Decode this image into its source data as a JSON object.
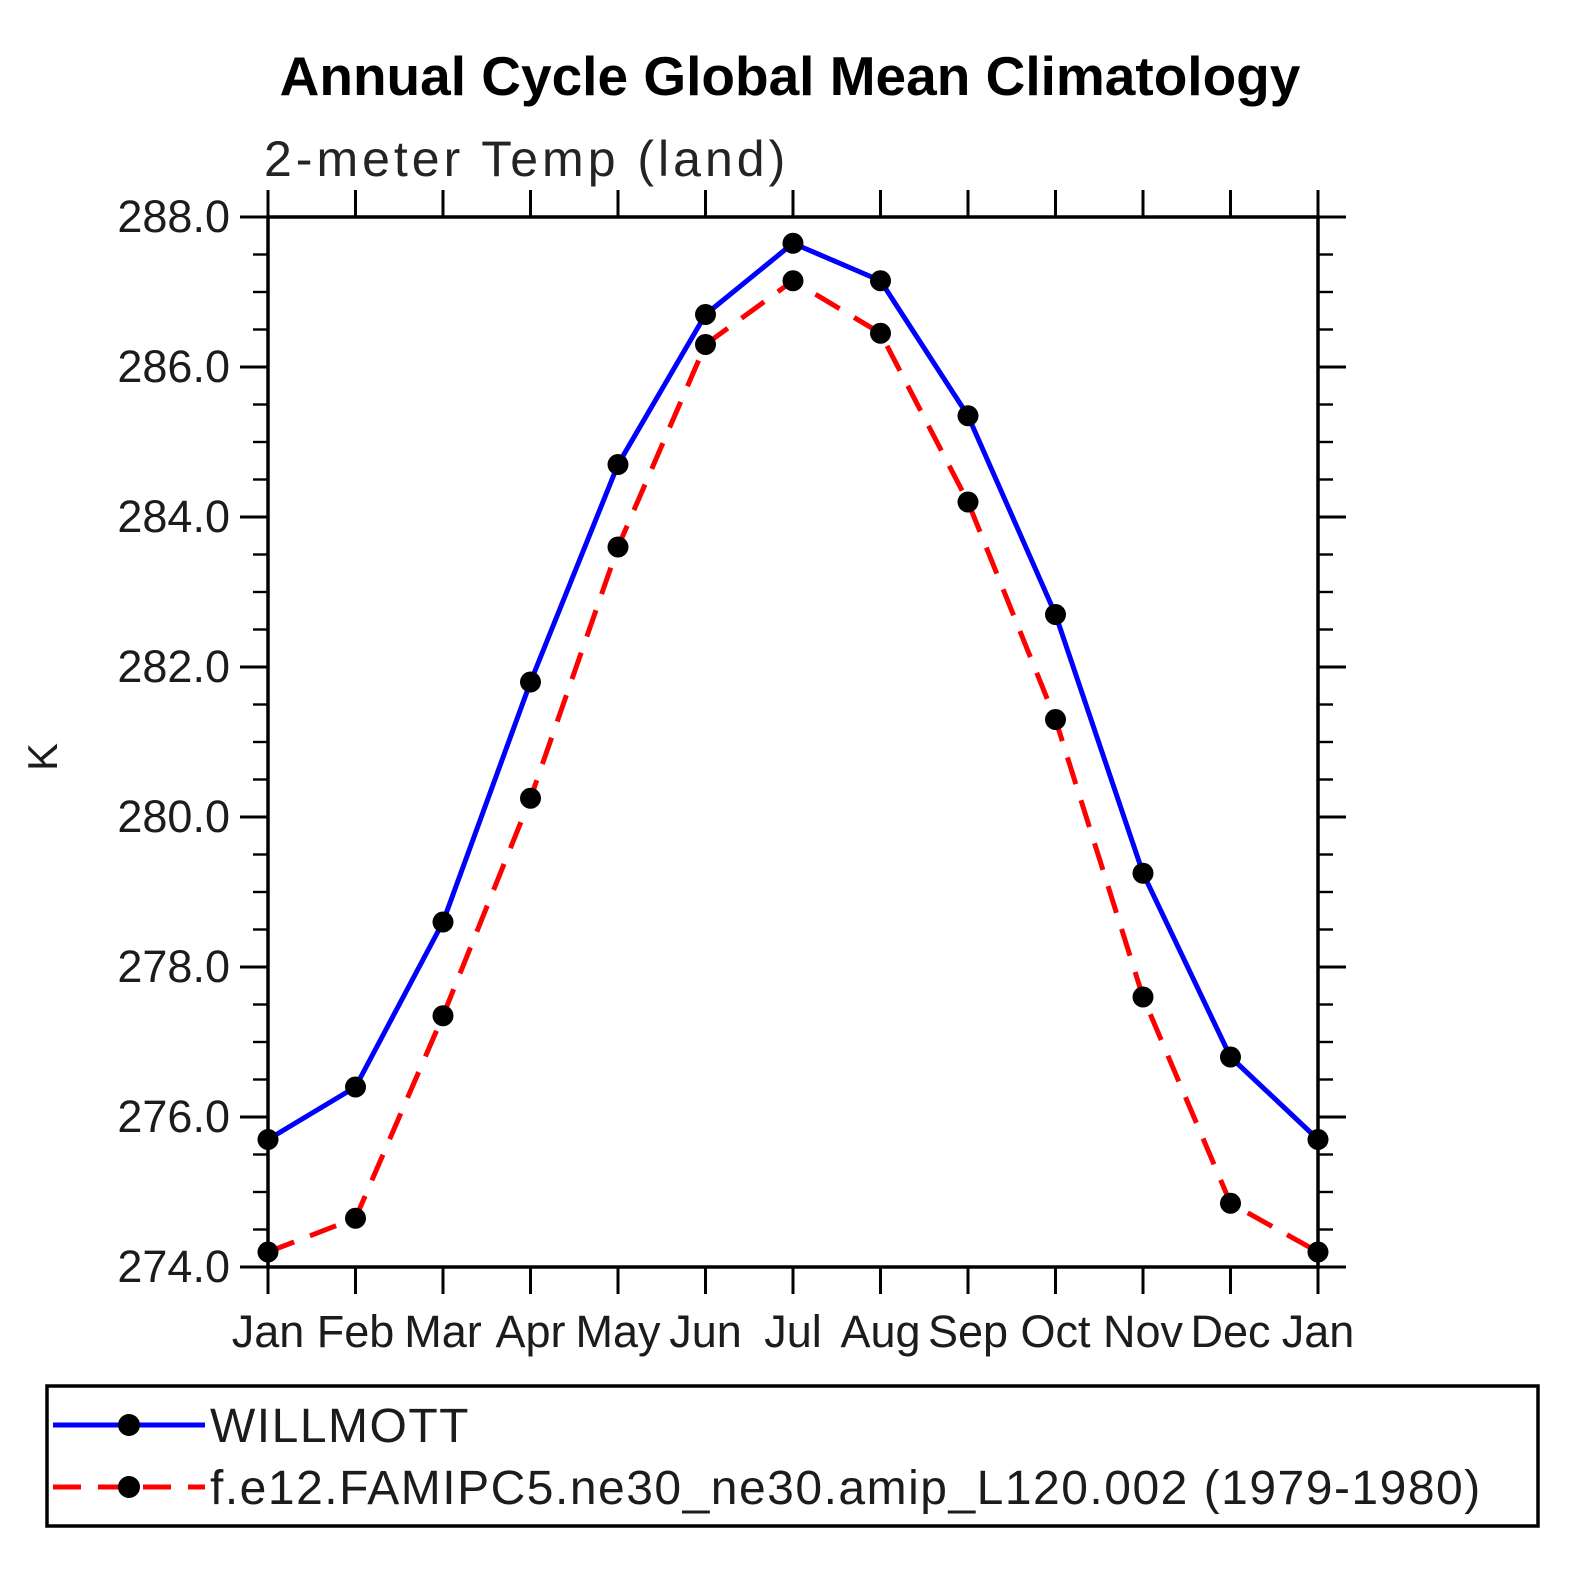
{
  "page": {
    "title": "Annual Cycle Global Mean Climatology",
    "subtitle": "2-meter Temp (land)"
  },
  "chart_data": {
    "type": "line",
    "title": "Annual Cycle Global Mean Climatology",
    "subtitle": "2-meter Temp (land)",
    "xlabel": "",
    "ylabel": "K",
    "x_tick_labels": [
      "Jan",
      "Feb",
      "Mar",
      "Apr",
      "May",
      "Jun",
      "Jul",
      "Aug",
      "Sep",
      "Oct",
      "Nov",
      "Dec",
      "Jan"
    ],
    "y_ticks": [
      274.0,
      276.0,
      278.0,
      280.0,
      282.0,
      284.0,
      286.0,
      288.0
    ],
    "y_tick_labels": [
      "274.0",
      "276.0",
      "278.0",
      "280.0",
      "282.0",
      "284.0",
      "286.0",
      "288.0"
    ],
    "ylim": [
      274.0,
      288.0
    ],
    "y_minor_step": 0.5,
    "grid": false,
    "legend_position": "bottom-left-box",
    "marker_color": "#000000",
    "axis_color": "#000000",
    "series": [
      {
        "name": "WILLMOTT",
        "color": "#0000ff",
        "line_style": "solid",
        "marker": "filled-circle",
        "values": [
          275.7,
          276.4,
          278.6,
          281.8,
          284.7,
          286.7,
          287.65,
          287.15,
          285.35,
          282.7,
          279.25,
          276.8,
          275.7
        ]
      },
      {
        "name": "f.e12.FAMIPC5.ne30_ne30.amip_L120.002 (1979-1980)",
        "color": "#ff0000",
        "line_style": "dashed",
        "marker": "filled-circle",
        "values": [
          274.2,
          274.65,
          277.35,
          280.25,
          283.6,
          286.3,
          287.15,
          286.45,
          284.2,
          281.3,
          277.6,
          274.85,
          274.2
        ]
      }
    ]
  }
}
